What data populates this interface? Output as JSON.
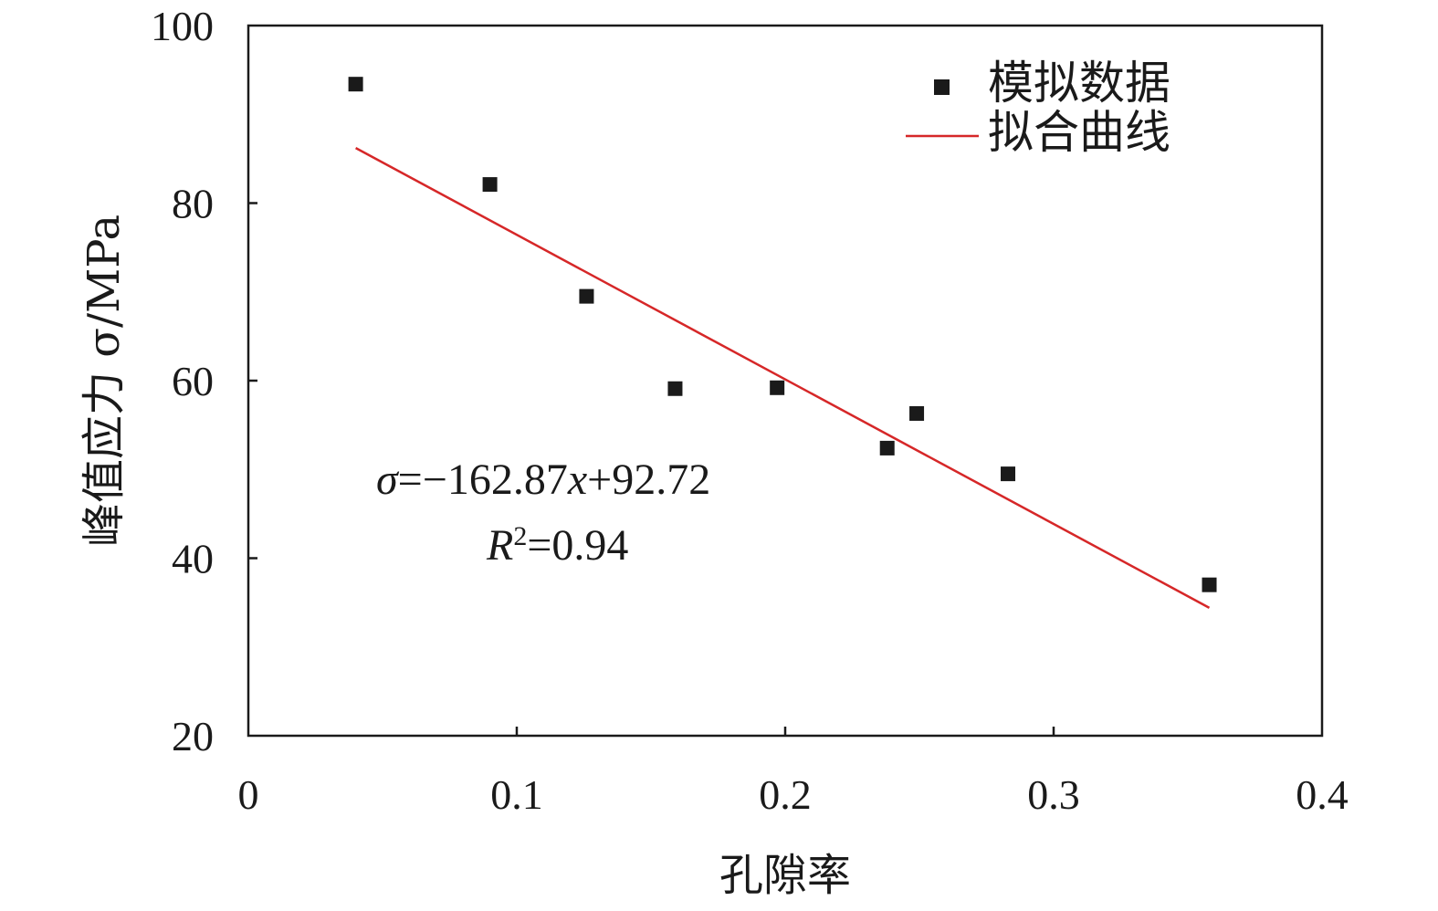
{
  "chart_data": {
    "type": "scatter",
    "xlabel": "孔隙率",
    "ylabel": "峰值应力 σ/MPa",
    "xlim": [
      0,
      0.4
    ],
    "ylim": [
      20,
      100
    ],
    "xticks": [
      "0",
      "0.1",
      "0.2",
      "0.3",
      "0.4"
    ],
    "yticks": [
      "20",
      "40",
      "60",
      "80",
      "100"
    ],
    "grid": false,
    "legend_position": "top-right",
    "series": [
      {
        "name": "模拟数据",
        "type": "scatter",
        "marker": "square",
        "color": "#1a1a1a",
        "points": [
          {
            "x": 0.04,
            "y": 93.4
          },
          {
            "x": 0.09,
            "y": 82.1
          },
          {
            "x": 0.126,
            "y": 69.5
          },
          {
            "x": 0.159,
            "y": 59.1
          },
          {
            "x": 0.197,
            "y": 59.2
          },
          {
            "x": 0.238,
            "y": 52.4
          },
          {
            "x": 0.249,
            "y": 56.3
          },
          {
            "x": 0.283,
            "y": 49.5
          },
          {
            "x": 0.358,
            "y": 37.0
          }
        ]
      },
      {
        "name": "拟合曲线",
        "type": "line",
        "color": "#d62728",
        "slope": -162.87,
        "intercept": 92.72,
        "x_range": [
          0.04,
          0.358
        ]
      }
    ],
    "annotations": {
      "equation": {
        "sigma": "σ",
        "eq_body": "=−162.87",
        "x": "x",
        "tail": "+92.72"
      },
      "r2": {
        "R": "R",
        "sup": "2",
        "value": "=0.94"
      }
    }
  }
}
